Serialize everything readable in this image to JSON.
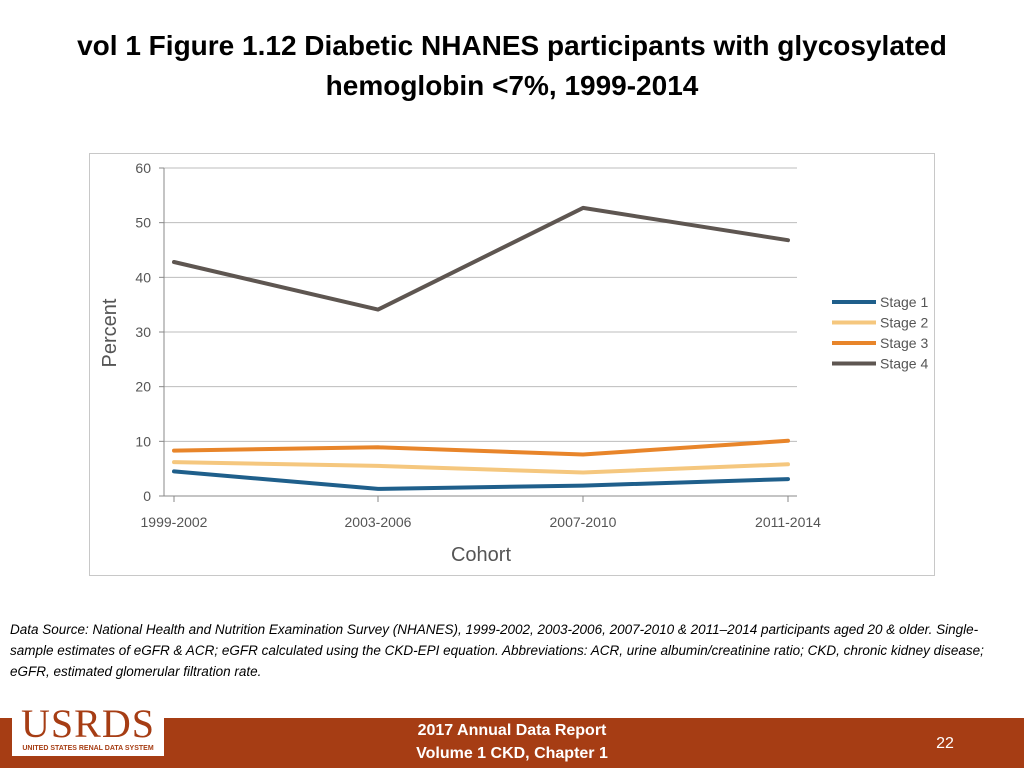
{
  "slide": {
    "title": "vol 1 Figure 1.12 Diabetic NHANES participants with glycosylated hemoglobin <7%, 1999-2014",
    "footnote": "Data Source: National Health and Nutrition Examination Survey (NHANES), 1999-2002, 2003-2006, 2007-2010 & 2011–2014 participants aged 20 & older. Single-sample estimates of eGFR & ACR; eGFR calculated using the CKD-EPI equation. Abbreviations: ACR, urine albumin/creatinine ratio; CKD, chronic kidney disease; eGFR, estimated glomerular filtration rate.",
    "footer": {
      "logo_text": "USRDS",
      "logo_subtext": "UNITED STATES RENAL DATA SYSTEM",
      "report_line1": "2017 Annual Data Report",
      "report_line2": "Volume 1 CKD, Chapter 1",
      "page_number": "22",
      "bar_color": "#a63d14"
    }
  },
  "chart_data": {
    "type": "line",
    "title": "",
    "xlabel": "Cohort",
    "ylabel": "Percent",
    "categories": [
      "1999-2002",
      "2003-2006",
      "2007-2010",
      "2011-2014"
    ],
    "ylim": [
      0,
      60
    ],
    "yticks": [
      0,
      10,
      20,
      30,
      40,
      50,
      60
    ],
    "grid": true,
    "legend": "right",
    "series": [
      {
        "name": "Stage 1",
        "color": "#1f5f8b",
        "values": [
          4.5,
          1.3,
          1.9,
          3.1
        ]
      },
      {
        "name": "Stage 2",
        "color": "#f5c77e",
        "values": [
          6.2,
          5.5,
          4.3,
          5.8
        ]
      },
      {
        "name": "Stage 3",
        "color": "#e8852a",
        "values": [
          8.3,
          8.9,
          7.6,
          10.1
        ]
      },
      {
        "name": "Stage 4",
        "color": "#5e5651",
        "values": [
          42.8,
          34.1,
          52.7,
          46.8
        ]
      }
    ]
  }
}
